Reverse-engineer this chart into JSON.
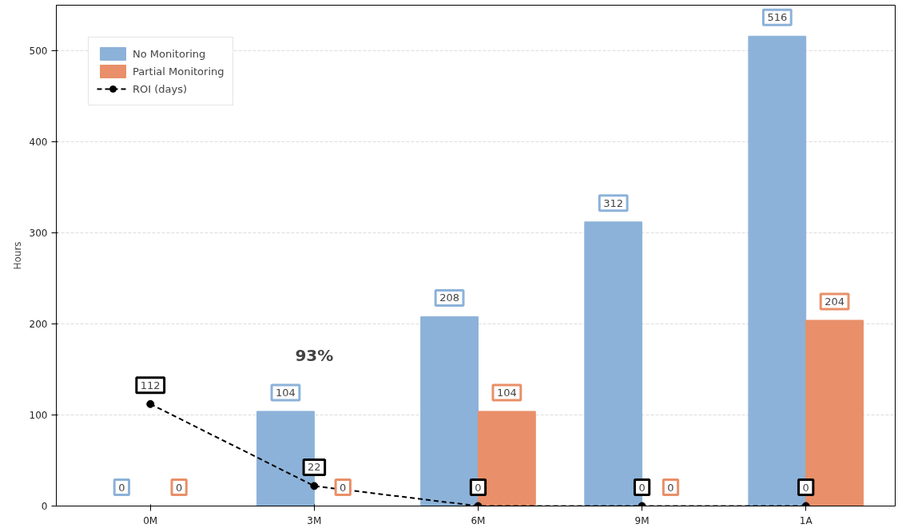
{
  "chart_data": {
    "type": "bar",
    "ylabel": "Hours",
    "categories": [
      "0M",
      "3M",
      "6M",
      "9M",
      "1A"
    ],
    "series": [
      {
        "name": "No Monitoring",
        "color": "#8cb2d9",
        "values": [
          0,
          104,
          208,
          312,
          516
        ]
      },
      {
        "name": "Partial Monitoring",
        "color": "#e98f69",
        "values": [
          0,
          0,
          104,
          0,
          204
        ]
      },
      {
        "name": "ROI (days)",
        "type": "line",
        "color": "#000000",
        "values": [
          112,
          22,
          0,
          0,
          0
        ],
        "marker": "circle",
        "line_style": "dashed"
      }
    ],
    "ylim": [
      0,
      550
    ],
    "yticks": [
      0,
      100,
      200,
      300,
      400,
      500
    ],
    "grid": "y",
    "legend": "top left",
    "data_labels": true,
    "annotations": [
      "93%"
    ]
  }
}
